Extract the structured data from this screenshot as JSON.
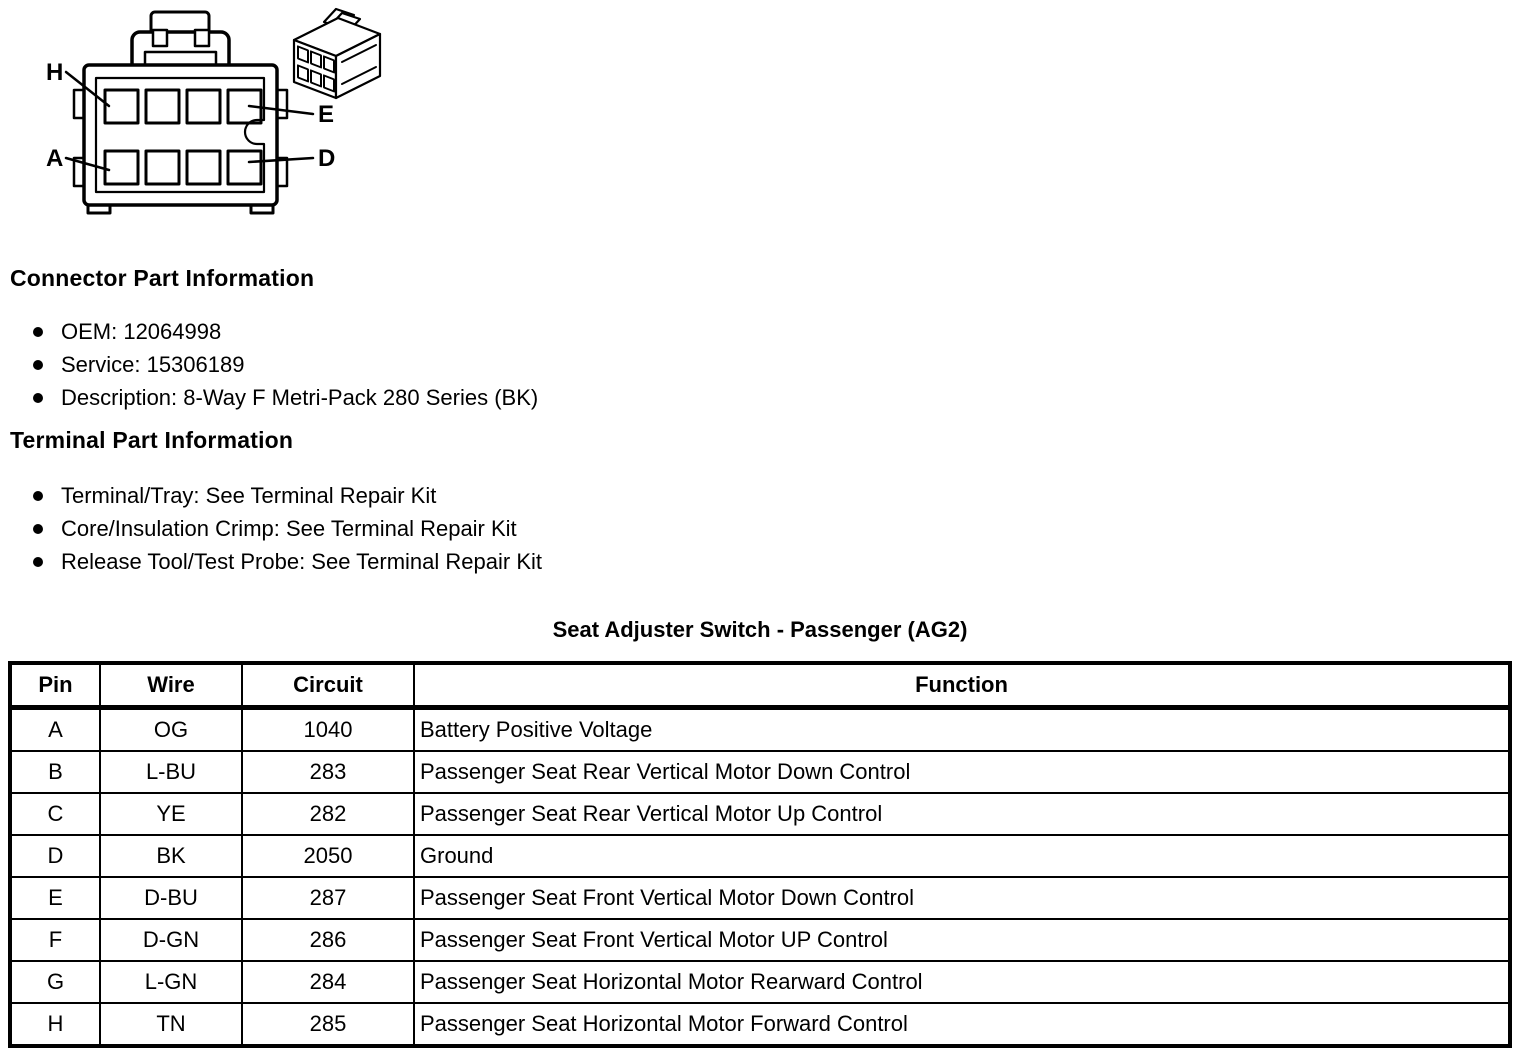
{
  "figure": {
    "pin_labels": {
      "top_left": "H",
      "bottom_left": "A",
      "top_right": "E",
      "bottom_right": "D"
    }
  },
  "connector_info": {
    "heading": "Connector Part Information",
    "bullets": [
      "OEM: 12064998",
      "Service: 15306189",
      "Description: 8-Way F Metri-Pack 280 Series (BK)"
    ]
  },
  "terminal_info": {
    "heading": "Terminal Part Information",
    "bullets": [
      "Terminal/Tray: See Terminal Repair Kit",
      "Core/Insulation Crimp: See Terminal Repair Kit",
      "Release Tool/Test Probe: See Terminal Repair Kit"
    ]
  },
  "table": {
    "title": "Seat Adjuster Switch - Passenger (AG2)",
    "headers": [
      "Pin",
      "Wire",
      "Circuit",
      "Function"
    ],
    "rows": [
      [
        "A",
        "OG",
        "1040",
        "Battery Positive Voltage"
      ],
      [
        "B",
        "L-BU",
        "283",
        "Passenger Seat Rear Vertical Motor Down Control"
      ],
      [
        "C",
        "YE",
        "282",
        "Passenger Seat Rear Vertical Motor Up Control"
      ],
      [
        "D",
        "BK",
        "2050",
        "Ground"
      ],
      [
        "E",
        "D-BU",
        "287",
        "Passenger Seat Front Vertical Motor Down Control"
      ],
      [
        "F",
        "D-GN",
        "286",
        "Passenger Seat Front Vertical Motor UP Control"
      ],
      [
        "G",
        "L-GN",
        "284",
        "Passenger Seat Horizontal Motor Rearward Control"
      ],
      [
        "H",
        "TN",
        "285",
        "Passenger Seat Horizontal Motor Forward Control"
      ]
    ]
  },
  "colors": {
    "ink": "#000000",
    "paper": "#ffffff"
  }
}
